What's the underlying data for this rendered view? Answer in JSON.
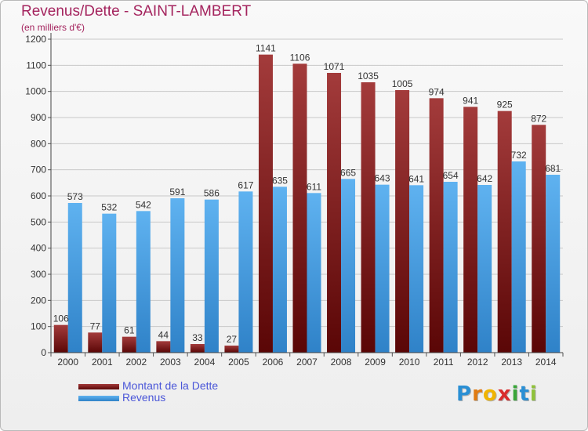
{
  "chart_data": {
    "type": "bar",
    "title": "Revenus/Dette - SAINT-LAMBERT",
    "subtitle": "(en milliers d'€)",
    "categories": [
      "2000",
      "2001",
      "2002",
      "2003",
      "2004",
      "2005",
      "2006",
      "2007",
      "2008",
      "2009",
      "2010",
      "2011",
      "2012",
      "2013",
      "2014"
    ],
    "series": [
      {
        "name": "Montant de la Dette",
        "color": "#8b2c2c",
        "values": [
          106,
          77,
          61,
          44,
          33,
          27,
          1141,
          1106,
          1071,
          1035,
          1005,
          974,
          941,
          925,
          872
        ]
      },
      {
        "name": "Revenus",
        "color": "#4da3e8",
        "values": [
          573,
          532,
          542,
          591,
          586,
          617,
          635,
          611,
          665,
          643,
          641,
          654,
          642,
          732,
          681
        ]
      }
    ],
    "ylim": [
      0,
      1200
    ],
    "yticks": [
      0,
      100,
      200,
      300,
      400,
      500,
      600,
      700,
      800,
      900,
      1000,
      1100,
      1200
    ],
    "grid": true,
    "legend_position": "bottom-left"
  },
  "logo": {
    "letters": [
      "P",
      "r",
      "o",
      "x",
      "i",
      "t",
      "i"
    ],
    "colors": [
      "#2a8fd4",
      "#e07b12",
      "#f0b400",
      "#d92b2b",
      "#3aa63a",
      "#2a8fd4",
      "#8fc23a"
    ]
  }
}
